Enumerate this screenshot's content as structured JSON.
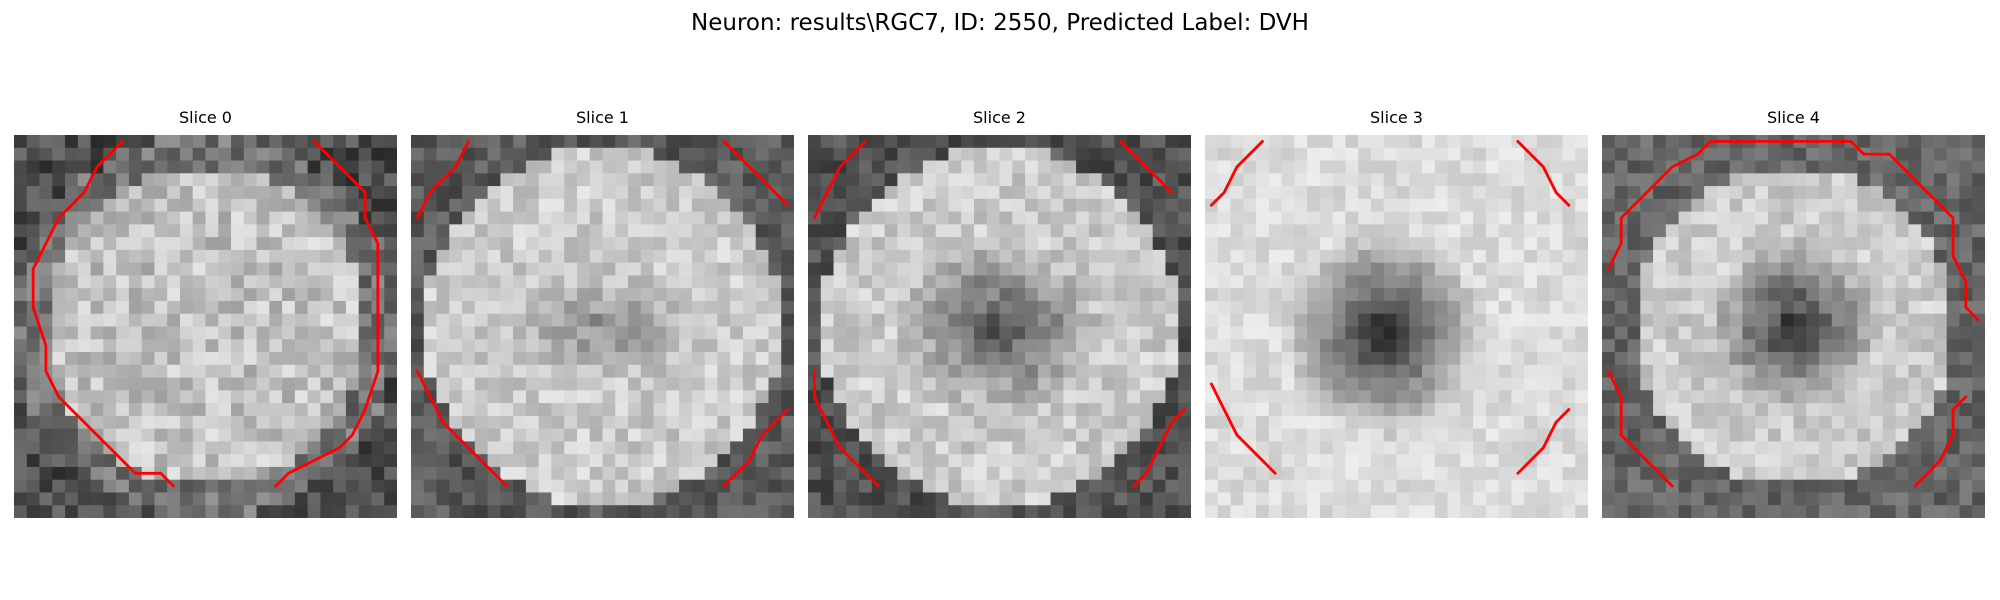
{
  "figure": {
    "title": "Neuron: results\\RGC7, ID: 2550, Predicted Label: DVH",
    "contour_color": "#ff0000"
  },
  "slices": [
    {
      "title": "Slice 0",
      "intensity_pattern": "bright-disc",
      "contours": [
        [
          [
            8.5,
            0.5
          ],
          [
            6.5,
            2.5
          ],
          [
            5.5,
            4.5
          ],
          [
            3.5,
            6.5
          ],
          [
            2.5,
            8.5
          ],
          [
            1.5,
            10.5
          ],
          [
            1.5,
            13.5
          ],
          [
            2.5,
            16.5
          ],
          [
            2.5,
            18.5
          ],
          [
            3.5,
            20.5
          ],
          [
            5.5,
            22.5
          ],
          [
            7.5,
            24.5
          ],
          [
            9.5,
            26.5
          ],
          [
            11.5,
            26.5
          ],
          [
            12.5,
            27.5
          ]
        ],
        [
          [
            23.5,
            0.5
          ],
          [
            25.5,
            2.5
          ],
          [
            27.5,
            4.5
          ],
          [
            27.5,
            6.5
          ],
          [
            28.5,
            8.5
          ],
          [
            28.5,
            11.5
          ],
          [
            28.5,
            14.5
          ],
          [
            28.5,
            16.5
          ],
          [
            28.5,
            18.5
          ],
          [
            27.5,
            21.5
          ],
          [
            26.5,
            23.5
          ],
          [
            25.5,
            24.5
          ],
          [
            23.5,
            25.5
          ],
          [
            21.5,
            26.5
          ],
          [
            20.5,
            27.5
          ]
        ]
      ]
    },
    {
      "title": "Slice 1",
      "intensity_pattern": "bright-ring-faint-center",
      "contours": [
        [
          [
            4.5,
            0.5
          ],
          [
            3.5,
            2.5
          ],
          [
            1.5,
            4.5
          ],
          [
            0.5,
            6.5
          ]
        ],
        [
          [
            24.5,
            0.5
          ],
          [
            26.5,
            2.5
          ],
          [
            28.5,
            4.5
          ],
          [
            29.5,
            5.5
          ]
        ],
        [
          [
            0.5,
            18.5
          ],
          [
            1.5,
            20.5
          ],
          [
            2.5,
            22.5
          ],
          [
            4.5,
            24.5
          ],
          [
            6.5,
            26.5
          ],
          [
            7.5,
            27.5
          ]
        ],
        [
          [
            24.5,
            27.5
          ],
          [
            26.5,
            25.5
          ],
          [
            27.5,
            23.5
          ],
          [
            29.5,
            21.5
          ]
        ]
      ]
    },
    {
      "title": "Slice 2",
      "intensity_pattern": "bright-ring-dark-center",
      "contours": [
        [
          [
            4.5,
            0.5
          ],
          [
            2.5,
            2.5
          ],
          [
            1.5,
            4.5
          ],
          [
            0.5,
            6.5
          ]
        ],
        [
          [
            24.5,
            0.5
          ],
          [
            26.5,
            2.5
          ],
          [
            28.5,
            4.5
          ]
        ],
        [
          [
            0.5,
            18.5
          ],
          [
            0.5,
            20.5
          ],
          [
            1.5,
            22.5
          ],
          [
            2.5,
            24.5
          ],
          [
            4.5,
            26.5
          ],
          [
            5.5,
            27.5
          ]
        ],
        [
          [
            25.5,
            27.5
          ],
          [
            26.5,
            26.5
          ],
          [
            27.5,
            24.5
          ],
          [
            28.5,
            22.5
          ],
          [
            29.5,
            21.5
          ]
        ]
      ]
    },
    {
      "title": "Slice 3",
      "intensity_pattern": "bright-field-dark-core",
      "contours": [
        [
          [
            4.5,
            0.5
          ],
          [
            2.5,
            2.5
          ],
          [
            1.5,
            4.5
          ],
          [
            0.5,
            5.5
          ]
        ],
        [
          [
            24.5,
            0.5
          ],
          [
            26.5,
            2.5
          ],
          [
            27.5,
            4.5
          ],
          [
            28.5,
            5.5
          ]
        ],
        [
          [
            0.5,
            19.5
          ],
          [
            1.5,
            21.5
          ],
          [
            2.5,
            23.5
          ],
          [
            4.5,
            25.5
          ],
          [
            5.5,
            26.5
          ]
        ],
        [
          [
            24.5,
            26.5
          ],
          [
            26.5,
            24.5
          ],
          [
            27.5,
            22.5
          ],
          [
            28.5,
            21.5
          ]
        ]
      ]
    },
    {
      "title": "Slice 4",
      "intensity_pattern": "bright-ring-dark-core",
      "contours": [
        [
          [
            0.5,
            10.5
          ],
          [
            1.5,
            8.5
          ],
          [
            1.5,
            6.5
          ],
          [
            3.5,
            4.5
          ],
          [
            5.5,
            2.5
          ],
          [
            7.5,
            1.5
          ],
          [
            8.5,
            0.5
          ],
          [
            12.5,
            0.5
          ],
          [
            16.5,
            0.5
          ],
          [
            19.5,
            0.5
          ],
          [
            20.5,
            1.5
          ],
          [
            22.5,
            1.5
          ],
          [
            23.5,
            2.5
          ],
          [
            24.5,
            3.5
          ],
          [
            26.5,
            5.5
          ],
          [
            27.5,
            6.5
          ],
          [
            27.5,
            9.5
          ],
          [
            28.5,
            11.5
          ],
          [
            28.5,
            13.5
          ],
          [
            29.5,
            14.5
          ]
        ],
        [
          [
            0.5,
            18.5
          ],
          [
            1.5,
            20.5
          ],
          [
            1.5,
            23.5
          ],
          [
            3.5,
            25.5
          ],
          [
            5.5,
            27.5
          ]
        ],
        [
          [
            24.5,
            27.5
          ],
          [
            26.5,
            25.5
          ],
          [
            27.5,
            23.5
          ],
          [
            27.5,
            21.5
          ],
          [
            28.5,
            20.5
          ]
        ]
      ]
    }
  ]
}
